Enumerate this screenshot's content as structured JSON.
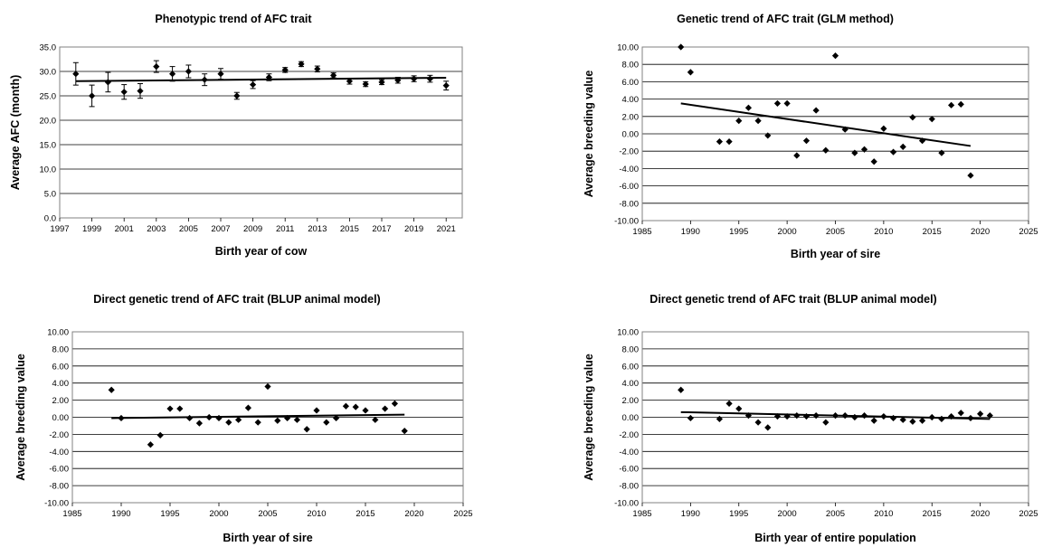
{
  "chart_data": [
    {
      "type": "scatter",
      "title": "Phenotypic trend of AFC trait",
      "xlabel": "Birth year of cow",
      "ylabel": "Average AFC (month)",
      "xlim": [
        1997,
        2022
      ],
      "ylim": [
        0,
        35
      ],
      "xticks": [
        1997,
        1999,
        2001,
        2003,
        2005,
        2007,
        2009,
        2011,
        2013,
        2015,
        2017,
        2019,
        2021
      ],
      "yticks": [
        0,
        5,
        10,
        15,
        20,
        25,
        30,
        35
      ],
      "ytick_decimals": 1,
      "grid": "horizontal",
      "error_bars": true,
      "points": [
        {
          "x": 1998,
          "y": 29.5,
          "err": 2.3
        },
        {
          "x": 1999,
          "y": 25.0,
          "err": 2.2
        },
        {
          "x": 2000,
          "y": 27.8,
          "err": 2.0
        },
        {
          "x": 2001,
          "y": 25.8,
          "err": 1.5
        },
        {
          "x": 2002,
          "y": 26.0,
          "err": 1.5
        },
        {
          "x": 2003,
          "y": 31.0,
          "err": 1.2
        },
        {
          "x": 2004,
          "y": 29.5,
          "err": 1.5
        },
        {
          "x": 2005,
          "y": 30.0,
          "err": 1.3
        },
        {
          "x": 2006,
          "y": 28.3,
          "err": 1.2
        },
        {
          "x": 2007,
          "y": 29.5,
          "err": 1.1
        },
        {
          "x": 2008,
          "y": 25.0,
          "err": 0.7
        },
        {
          "x": 2009,
          "y": 27.3,
          "err": 0.8
        },
        {
          "x": 2010,
          "y": 28.8,
          "err": 0.7
        },
        {
          "x": 2011,
          "y": 30.3,
          "err": 0.5
        },
        {
          "x": 2012,
          "y": 31.5,
          "err": 0.5
        },
        {
          "x": 2013,
          "y": 30.5,
          "err": 0.6
        },
        {
          "x": 2014,
          "y": 29.2,
          "err": 0.5
        },
        {
          "x": 2015,
          "y": 28.0,
          "err": 0.6
        },
        {
          "x": 2016,
          "y": 27.4,
          "err": 0.5
        },
        {
          "x": 2017,
          "y": 27.8,
          "err": 0.5
        },
        {
          "x": 2018,
          "y": 28.2,
          "err": 0.6
        },
        {
          "x": 2019,
          "y": 28.5,
          "err": 0.6
        },
        {
          "x": 2020,
          "y": 28.5,
          "err": 0.7
        },
        {
          "x": 2021,
          "y": 27.1,
          "err": 0.9
        }
      ],
      "trendline": [
        [
          1998,
          28.0
        ],
        [
          2021,
          28.7
        ]
      ]
    },
    {
      "type": "scatter",
      "title": "Genetic trend of AFC trait (GLM method)",
      "xlabel": "Birth year of sire",
      "ylabel": "Average breeding value",
      "xlim": [
        1985,
        2025
      ],
      "ylim": [
        -10,
        10
      ],
      "xticks": [
        1985,
        1990,
        1995,
        2000,
        2005,
        2010,
        2015,
        2020,
        2025
      ],
      "yticks": [
        -10,
        -8,
        -6,
        -4,
        -2,
        0,
        2,
        4,
        6,
        8,
        10
      ],
      "ytick_decimals": 2,
      "grid": "horizontal",
      "error_bars": false,
      "points": [
        {
          "x": 1989,
          "y": 10.0
        },
        {
          "x": 1990,
          "y": 7.1
        },
        {
          "x": 1993,
          "y": -0.9
        },
        {
          "x": 1994,
          "y": -0.9
        },
        {
          "x": 1995,
          "y": 1.5
        },
        {
          "x": 1996,
          "y": 3.0
        },
        {
          "x": 1997,
          "y": 1.5
        },
        {
          "x": 1998,
          "y": -0.2
        },
        {
          "x": 1999,
          "y": 3.5
        },
        {
          "x": 2000,
          "y": 3.5
        },
        {
          "x": 2001,
          "y": -2.5
        },
        {
          "x": 2002,
          "y": -0.8
        },
        {
          "x": 2003,
          "y": 2.7
        },
        {
          "x": 2004,
          "y": -1.9
        },
        {
          "x": 2005,
          "y": 9.0
        },
        {
          "x": 2006,
          "y": 0.5
        },
        {
          "x": 2007,
          "y": -2.2
        },
        {
          "x": 2008,
          "y": -1.8
        },
        {
          "x": 2009,
          "y": -3.2
        },
        {
          "x": 2010,
          "y": 0.6
        },
        {
          "x": 2011,
          "y": -2.1
        },
        {
          "x": 2012,
          "y": -1.5
        },
        {
          "x": 2013,
          "y": 1.9
        },
        {
          "x": 2014,
          "y": -0.8
        },
        {
          "x": 2015,
          "y": 1.7
        },
        {
          "x": 2016,
          "y": -2.2
        },
        {
          "x": 2017,
          "y": 3.3
        },
        {
          "x": 2018,
          "y": 3.4
        },
        {
          "x": 2019,
          "y": -4.8
        }
      ],
      "trendline": [
        [
          1989,
          3.5
        ],
        [
          2019,
          -1.4
        ]
      ]
    },
    {
      "type": "scatter",
      "title": "Direct genetic trend of AFC trait (BLUP animal model)",
      "xlabel": "Birth year of sire",
      "ylabel": "Average breeding value",
      "xlim": [
        1985,
        2025
      ],
      "ylim": [
        -10,
        10
      ],
      "xticks": [
        1985,
        1990,
        1995,
        2000,
        2005,
        2010,
        2015,
        2020,
        2025
      ],
      "yticks": [
        -10,
        -8,
        -6,
        -4,
        -2,
        0,
        2,
        4,
        6,
        8,
        10
      ],
      "ytick_decimals": 2,
      "grid": "horizontal",
      "error_bars": false,
      "points": [
        {
          "x": 1989,
          "y": 3.2
        },
        {
          "x": 1990,
          "y": -0.1
        },
        {
          "x": 1993,
          "y": -3.2
        },
        {
          "x": 1994,
          "y": -2.1
        },
        {
          "x": 1995,
          "y": 1.0
        },
        {
          "x": 1996,
          "y": 1.0
        },
        {
          "x": 1997,
          "y": -0.1
        },
        {
          "x": 1998,
          "y": -0.7
        },
        {
          "x": 1999,
          "y": 0.0
        },
        {
          "x": 2000,
          "y": -0.1
        },
        {
          "x": 2001,
          "y": -0.6
        },
        {
          "x": 2002,
          "y": -0.3
        },
        {
          "x": 2003,
          "y": 1.1
        },
        {
          "x": 2004,
          "y": -0.6
        },
        {
          "x": 2005,
          "y": 3.6
        },
        {
          "x": 2006,
          "y": -0.4
        },
        {
          "x": 2007,
          "y": -0.1
        },
        {
          "x": 2008,
          "y": -0.3
        },
        {
          "x": 2009,
          "y": -1.4
        },
        {
          "x": 2010,
          "y": 0.8
        },
        {
          "x": 2011,
          "y": -0.6
        },
        {
          "x": 2012,
          "y": -0.1
        },
        {
          "x": 2013,
          "y": 1.3
        },
        {
          "x": 2014,
          "y": 1.2
        },
        {
          "x": 2015,
          "y": 0.8
        },
        {
          "x": 2016,
          "y": -0.3
        },
        {
          "x": 2017,
          "y": 1.0
        },
        {
          "x": 2018,
          "y": 1.6
        },
        {
          "x": 2019,
          "y": -1.6
        }
      ],
      "trendline": [
        [
          1989,
          -0.1
        ],
        [
          2019,
          0.3
        ]
      ]
    },
    {
      "type": "scatter",
      "title": "Direct genetic trend of AFC trait (BLUP animal model)",
      "xlabel": "Birth year of entire population",
      "ylabel": "Average breeding value",
      "xlim": [
        1985,
        2025
      ],
      "ylim": [
        -10,
        10
      ],
      "xticks": [
        1985,
        1990,
        1995,
        2000,
        2005,
        2010,
        2015,
        2020,
        2025
      ],
      "yticks": [
        -10,
        -8,
        -6,
        -4,
        -2,
        0,
        2,
        4,
        6,
        8,
        10
      ],
      "ytick_decimals": 2,
      "grid": "horizontal",
      "error_bars": false,
      "points": [
        {
          "x": 1989,
          "y": 3.2
        },
        {
          "x": 1990,
          "y": -0.1
        },
        {
          "x": 1993,
          "y": -0.2
        },
        {
          "x": 1994,
          "y": 1.6
        },
        {
          "x": 1995,
          "y": 1.0
        },
        {
          "x": 1996,
          "y": 0.2
        },
        {
          "x": 1997,
          "y": -0.6
        },
        {
          "x": 1998,
          "y": -1.2
        },
        {
          "x": 1999,
          "y": 0.1
        },
        {
          "x": 2000,
          "y": 0.1
        },
        {
          "x": 2001,
          "y": 0.2
        },
        {
          "x": 2002,
          "y": 0.1
        },
        {
          "x": 2003,
          "y": 0.2
        },
        {
          "x": 2004,
          "y": -0.6
        },
        {
          "x": 2005,
          "y": 0.2
        },
        {
          "x": 2006,
          "y": 0.2
        },
        {
          "x": 2007,
          "y": 0.0
        },
        {
          "x": 2008,
          "y": 0.2
        },
        {
          "x": 2009,
          "y": -0.4
        },
        {
          "x": 2010,
          "y": 0.1
        },
        {
          "x": 2011,
          "y": -0.1
        },
        {
          "x": 2012,
          "y": -0.3
        },
        {
          "x": 2013,
          "y": -0.5
        },
        {
          "x": 2014,
          "y": -0.4
        },
        {
          "x": 2015,
          "y": 0.0
        },
        {
          "x": 2016,
          "y": -0.2
        },
        {
          "x": 2017,
          "y": 0.1
        },
        {
          "x": 2018,
          "y": 0.5
        },
        {
          "x": 2019,
          "y": -0.1
        },
        {
          "x": 2020,
          "y": 0.4
        },
        {
          "x": 2021,
          "y": 0.2
        }
      ],
      "trendline": [
        [
          1989,
          0.6
        ],
        [
          2021,
          -0.2
        ]
      ]
    }
  ]
}
